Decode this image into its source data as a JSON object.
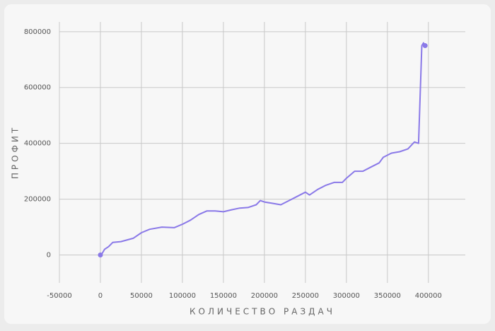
{
  "chart_data": {
    "type": "line",
    "xlabel": "КОЛИЧЕСТВО РАЗДАЧ",
    "ylabel": "ПРОФИТ",
    "x": [
      0,
      2000,
      5000,
      10000,
      15000,
      25000,
      40000,
      50000,
      60000,
      75000,
      90000,
      100000,
      110000,
      120000,
      130000,
      140000,
      150000,
      160000,
      170000,
      180000,
      190000,
      195000,
      200000,
      210000,
      220000,
      230000,
      240000,
      250000,
      255000,
      265000,
      275000,
      285000,
      295000,
      300000,
      310000,
      320000,
      330000,
      340000,
      345000,
      355000,
      365000,
      375000,
      383000,
      388000,
      392000,
      394000,
      396000
    ],
    "series": [
      {
        "color": "#8a79e8",
        "values": [
          0,
          5000,
          20000,
          30000,
          45000,
          48000,
          60000,
          80000,
          92000,
          100000,
          98000,
          110000,
          125000,
          145000,
          158000,
          158000,
          155000,
          162000,
          168000,
          170000,
          180000,
          195000,
          190000,
          185000,
          180000,
          195000,
          210000,
          225000,
          215000,
          235000,
          250000,
          260000,
          260000,
          275000,
          300000,
          300000,
          315000,
          330000,
          350000,
          365000,
          370000,
          380000,
          405000,
          400000,
          750000,
          760000,
          750000
        ]
      }
    ],
    "xlim": [
      -50000,
      445000
    ],
    "ylim": [
      -100000,
      835000
    ],
    "xticks": [
      -50000,
      0,
      50000,
      100000,
      150000,
      200000,
      250000,
      300000,
      350000,
      400000
    ],
    "yticks": [
      0,
      200000,
      400000,
      600000,
      800000
    ],
    "grid": true
  }
}
